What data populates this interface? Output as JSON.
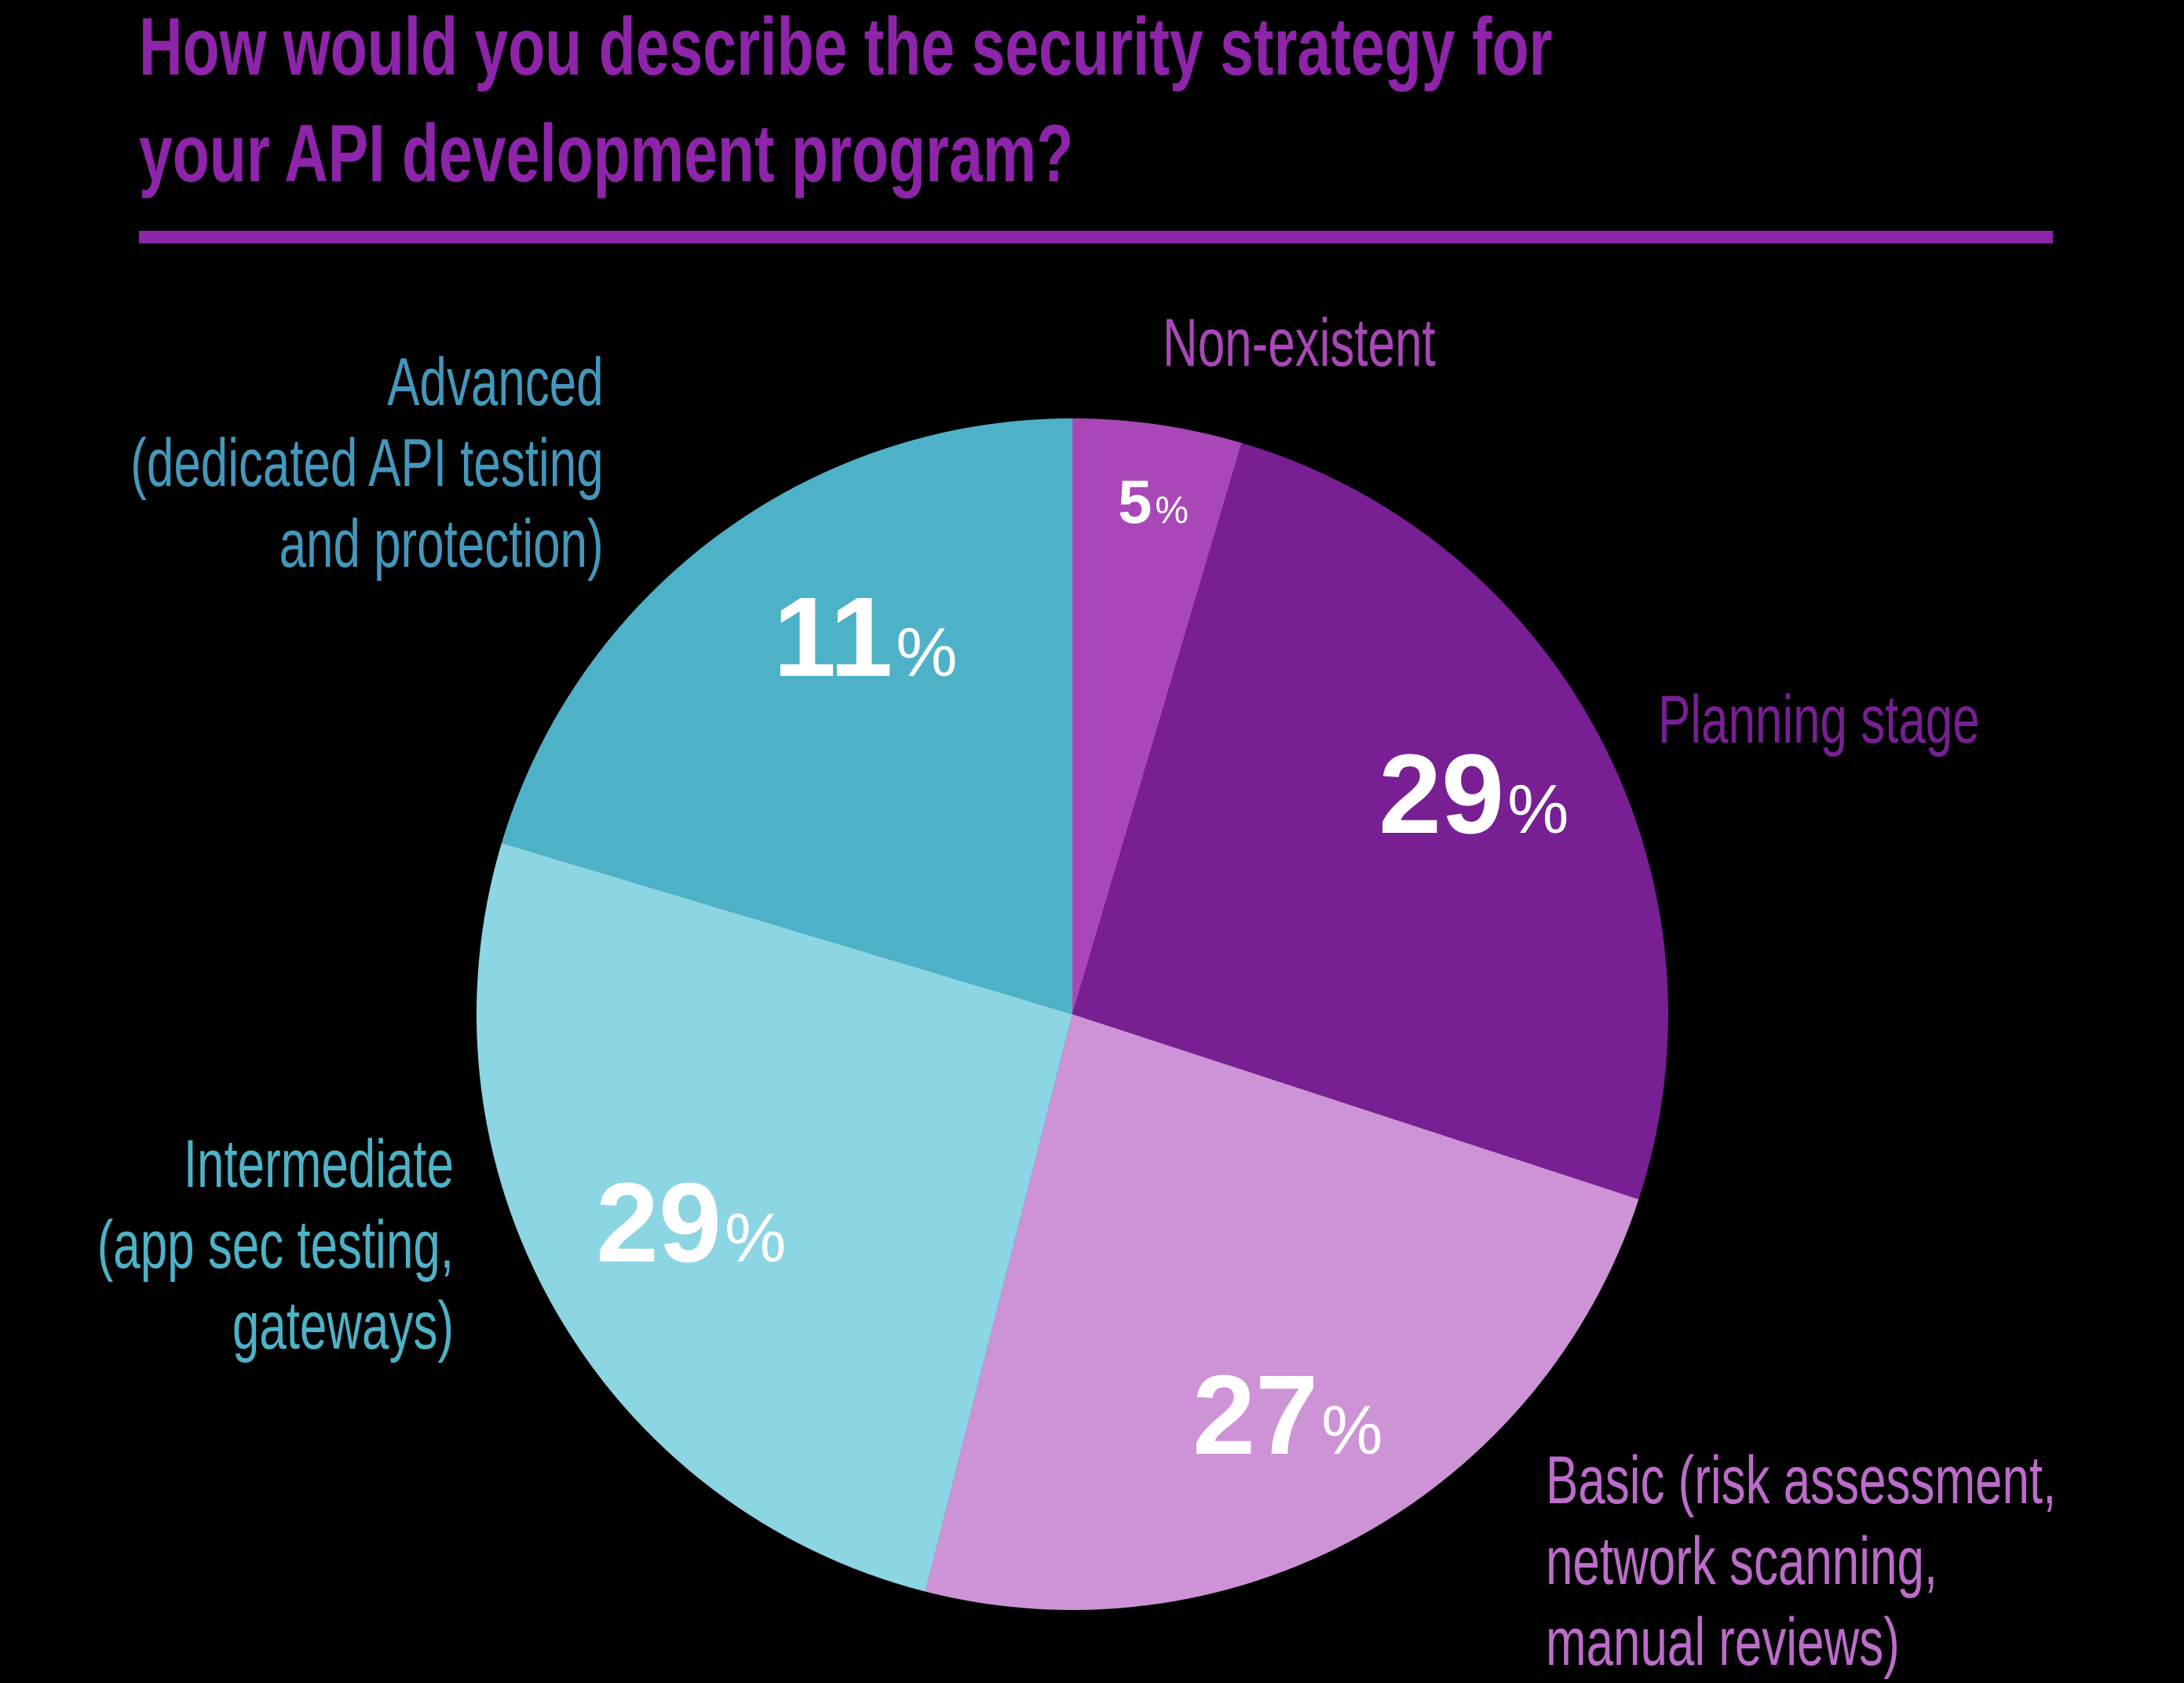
{
  "title": {
    "line1": "How would you describe the security strategy for",
    "line2": "your API development program?",
    "color": "#8E24AA"
  },
  "chart_data": {
    "type": "pie",
    "title": "How would you describe the security strategy for your API development program?",
    "categories": [
      "Non-existent",
      "Planning stage",
      "Basic (risk assessment, network scanning, manual reviews)",
      "Intermediate (app sec testing, gateways)",
      "Advanced (dedicated API testing and protection)"
    ],
    "values": [
      5,
      29,
      27,
      29,
      11
    ],
    "unit": "%",
    "colors": [
      "#AA47B8",
      "#781F93",
      "#CE93D7",
      "#8BD6E2",
      "#4DB2C7"
    ],
    "drawn_angles_deg": [
      [
        0,
        16.5
      ],
      [
        16.5,
        108.1
      ],
      [
        108.1,
        194.3
      ],
      [
        194.3,
        286.7
      ],
      [
        286.7,
        360
      ]
    ],
    "start_angle": "12 o'clock, clockwise",
    "legend_position": "outside labels"
  },
  "slices": {
    "nonexistent": {
      "value": "5",
      "sign": "%",
      "label": [
        "Non-existent"
      ],
      "label_color": "#AA47B8"
    },
    "planning": {
      "value": "29",
      "sign": "%",
      "label": [
        "Planning stage"
      ],
      "label_color": "#781F93"
    },
    "basic": {
      "value": "27",
      "sign": "%",
      "label": [
        "Basic (risk assessment,",
        "network scanning,",
        "manual reviews)"
      ],
      "label_color": "#BC6CC9"
    },
    "intermediate": {
      "value": "29",
      "sign": "%",
      "label": [
        "Intermediate",
        "(app sec testing,",
        "gateways)"
      ],
      "label_color": "#4DB2C7"
    },
    "advanced": {
      "value": "11",
      "sign": "%",
      "label": [
        "Advanced",
        "(dedicated API testing",
        "and protection)"
      ],
      "label_color": "#4398BC"
    }
  }
}
